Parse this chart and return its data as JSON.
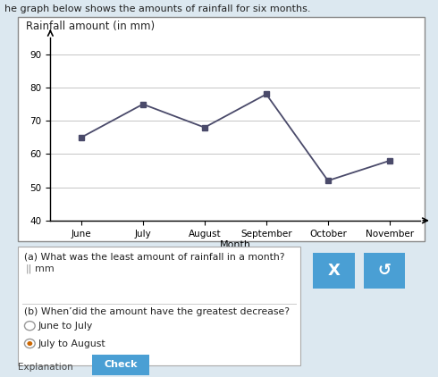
{
  "months": [
    "June",
    "July",
    "August",
    "September",
    "October",
    "November"
  ],
  "rainfall": [
    65,
    75,
    68,
    78,
    52,
    58
  ],
  "chart_title": "Rainfall amount (in mm)",
  "xlabel": "Month",
  "ylim": [
    40,
    95
  ],
  "yticks": [
    40,
    50,
    60,
    70,
    80,
    90
  ],
  "line_color": "#4a4a6a",
  "marker_color": "#4a4a6a",
  "marker_size": 5,
  "line_width": 1.3,
  "page_title": "he graph below shows the amounts of rainfall for six months.",
  "bg_color": "#dce8f0",
  "chart_bg": "#f0f0e8",
  "chart_border": "#aaaaaa",
  "grid_color": "#bbbbbb",
  "question_a": "(a) What was the least amount of rainfall in a month?",
  "answer_a_label": "mm",
  "question_b": "(b) When’did the amount have the greatest decrease?",
  "option1": "June to July",
  "option2": "July to August",
  "btn_color": "#4a9fd4",
  "btn_x_label": "X",
  "btn_s_label": "↺",
  "bottom_label": "Explanation",
  "check_label": "Check"
}
